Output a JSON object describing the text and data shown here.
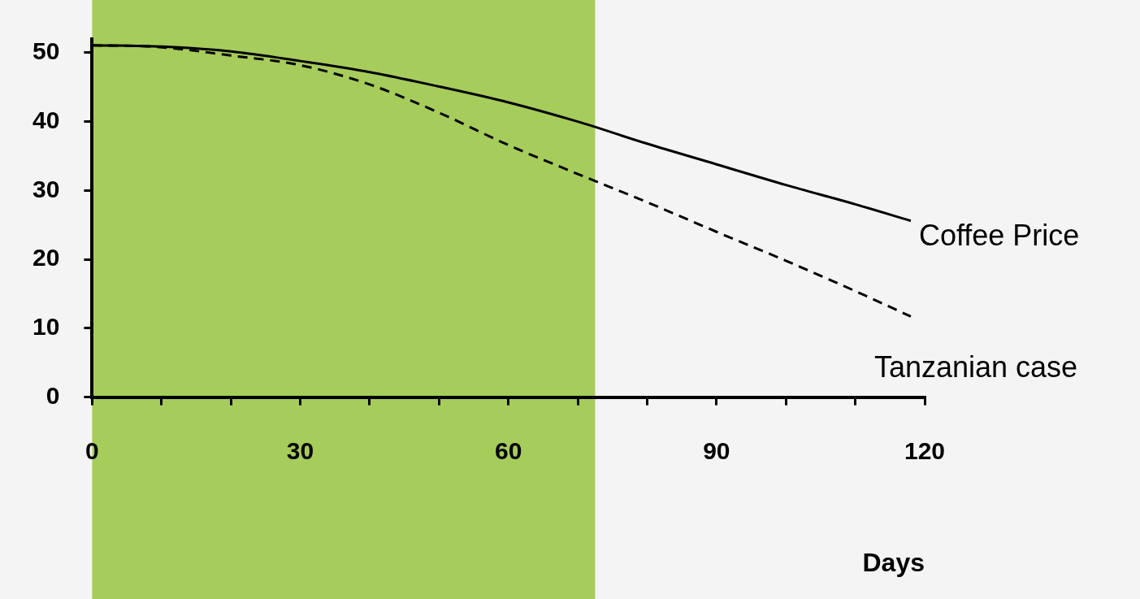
{
  "chart_data": {
    "type": "line",
    "xlabel": "Days",
    "x": [
      0,
      10,
      20,
      30,
      40,
      50,
      60,
      70,
      80,
      90,
      100,
      110,
      118
    ],
    "series": [
      {
        "name": "Coffee Price",
        "color": "#000000",
        "line_style": "solid",
        "values": [
          51.1,
          50.9,
          50.2,
          48.8,
          47.2,
          45.1,
          42.8,
          40.0,
          36.8,
          33.8,
          30.8,
          28.0,
          25.6
        ]
      },
      {
        "name": "Tanzanian case",
        "color": "#000000",
        "line_style": "dashed",
        "values": [
          51.1,
          50.8,
          49.6,
          48.2,
          45.4,
          41.3,
          36.6,
          32.4,
          28.3,
          24.0,
          19.8,
          15.4,
          11.7
        ]
      }
    ],
    "xlim": [
      0,
      120
    ],
    "ylim": [
      0,
      52
    ],
    "xticks": [
      0,
      {
        "value": 10,
        "label": null
      },
      {
        "value": 20,
        "label": null
      },
      30,
      {
        "value": 40,
        "label": null
      },
      {
        "value": 50,
        "label": null
      },
      60,
      {
        "value": 70,
        "label": null
      },
      {
        "value": 80,
        "label": null
      },
      90,
      {
        "value": 100,
        "label": null
      },
      {
        "value": 110,
        "label": null
      },
      120
    ],
    "yticks": [
      0,
      10,
      20,
      30,
      40,
      50
    ],
    "bands": [
      {
        "axis": "x",
        "from": 0,
        "to": 72.5,
        "color": "#a6cc5c"
      }
    ],
    "grid": false,
    "legend": false,
    "marker": "none"
  }
}
